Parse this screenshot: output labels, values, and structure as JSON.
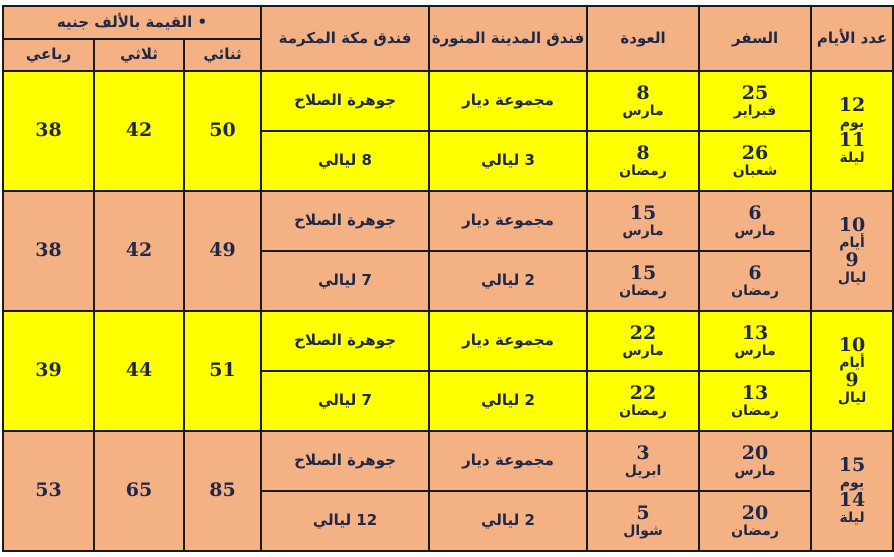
{
  "header": {
    "days": "عدد الأيام",
    "departure": "السفر",
    "return": "العودة",
    "madinah_hotel": "فندق المدينة المنورة",
    "makkah_hotel": "فندق مكة المكرمة",
    "price_group": "• القيمة بالألف جنيه",
    "double": "ثنائي",
    "triple": "ثلاثي",
    "quad": "رباعي"
  },
  "colors": {
    "yellow": "#ffff00",
    "salmon": "#f4b183",
    "text": "#1f2847"
  },
  "rows": [
    {
      "color": "yellow",
      "days_a": "12",
      "days_b": "يوم",
      "days_c": "11",
      "days_d": "ليلة",
      "dep1_num": "25",
      "dep1_month": "فبراير",
      "dep2_num": "26",
      "dep2_month": "شعبان",
      "ret1_num": "8",
      "ret1_month": "مارس",
      "ret2_num": "8",
      "ret2_month": "رمضان",
      "madinah": "مجموعة ديار",
      "madinah_nights": "3 ليالي",
      "makkah": "جوهرة الصلاح",
      "makkah_nights": "8 ليالي",
      "double": "50",
      "triple": "42",
      "quad": "38"
    },
    {
      "color": "salmon",
      "days_a": "10",
      "days_b": "أيام",
      "days_c": "9",
      "days_d": "ليال",
      "dep1_num": "6",
      "dep1_month": "مارس",
      "dep2_num": "6",
      "dep2_month": "رمضان",
      "ret1_num": "15",
      "ret1_month": "مارس",
      "ret2_num": "15",
      "ret2_month": "رمضان",
      "madinah": "مجموعة ديار",
      "madinah_nights": "2 ليالي",
      "makkah": "جوهرة الصلاح",
      "makkah_nights": "7 ليالي",
      "double": "49",
      "triple": "42",
      "quad": "38"
    },
    {
      "color": "yellow",
      "days_a": "10",
      "days_b": "أيام",
      "days_c": "9",
      "days_d": "ليال",
      "dep1_num": "13",
      "dep1_month": "مارس",
      "dep2_num": "13",
      "dep2_month": "رمضان",
      "ret1_num": "22",
      "ret1_month": "مارس",
      "ret2_num": "22",
      "ret2_month": "رمضان",
      "madinah": "مجموعة ديار",
      "madinah_nights": "2 ليالي",
      "makkah": "جوهرة الصلاح",
      "makkah_nights": "7 ليالي",
      "double": "51",
      "triple": "44",
      "quad": "39"
    },
    {
      "color": "salmon",
      "days_a": "15",
      "days_b": "يوم",
      "days_c": "14",
      "days_d": "ليلة",
      "dep1_num": "20",
      "dep1_month": "مارس",
      "dep2_num": "20",
      "dep2_month": "رمضان",
      "ret1_num": "3",
      "ret1_month": "ابريل",
      "ret2_num": "5",
      "ret2_month": "شوال",
      "madinah": "مجموعة ديار",
      "madinah_nights": "2 ليالي",
      "makkah": "جوهرة الصلاح",
      "makkah_nights": "12 ليالي",
      "double": "85",
      "triple": "65",
      "quad": "53"
    }
  ]
}
